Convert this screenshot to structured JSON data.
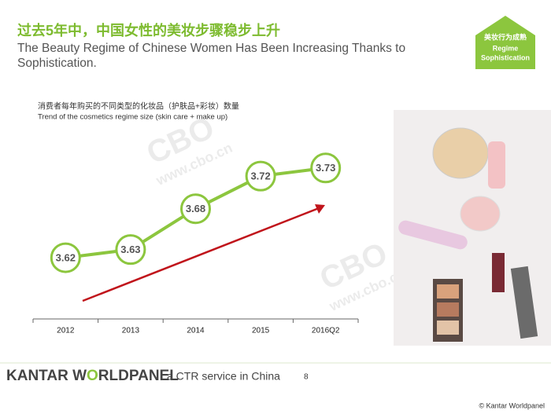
{
  "header": {
    "title": "过去5年中，中国女性的美妆步骤稳步上升",
    "subtitle": "The Beauty Regime of Chinese Women Has Been Increasing Thanks to Sophistication."
  },
  "badge": {
    "line1": "美妆行为成熟",
    "line2": "Regime",
    "line3": "Sophistication"
  },
  "watermark": {
    "logo": "CBO",
    "url": "www.cbo.cn"
  },
  "chart_data": {
    "type": "line",
    "title": "消费者每年购买的不同类型的化妆品（护肤品+彩妆）数量",
    "subtitle": "Trend of the cosmetics regime size (skin care + make up)",
    "categories": [
      "2012",
      "2013",
      "2014",
      "2015",
      "2016Q2"
    ],
    "values": [
      3.62,
      3.63,
      3.68,
      3.72,
      3.73
    ],
    "color": "#8cc63e",
    "ylim": [
      3.545,
      3.75
    ]
  },
  "footer": {
    "brand1": "KANTAR W",
    "brand2": "RLDPANEL",
    "service": "a CTR service in China",
    "page": "8",
    "copyright": "© Kantar Worldpanel"
  }
}
